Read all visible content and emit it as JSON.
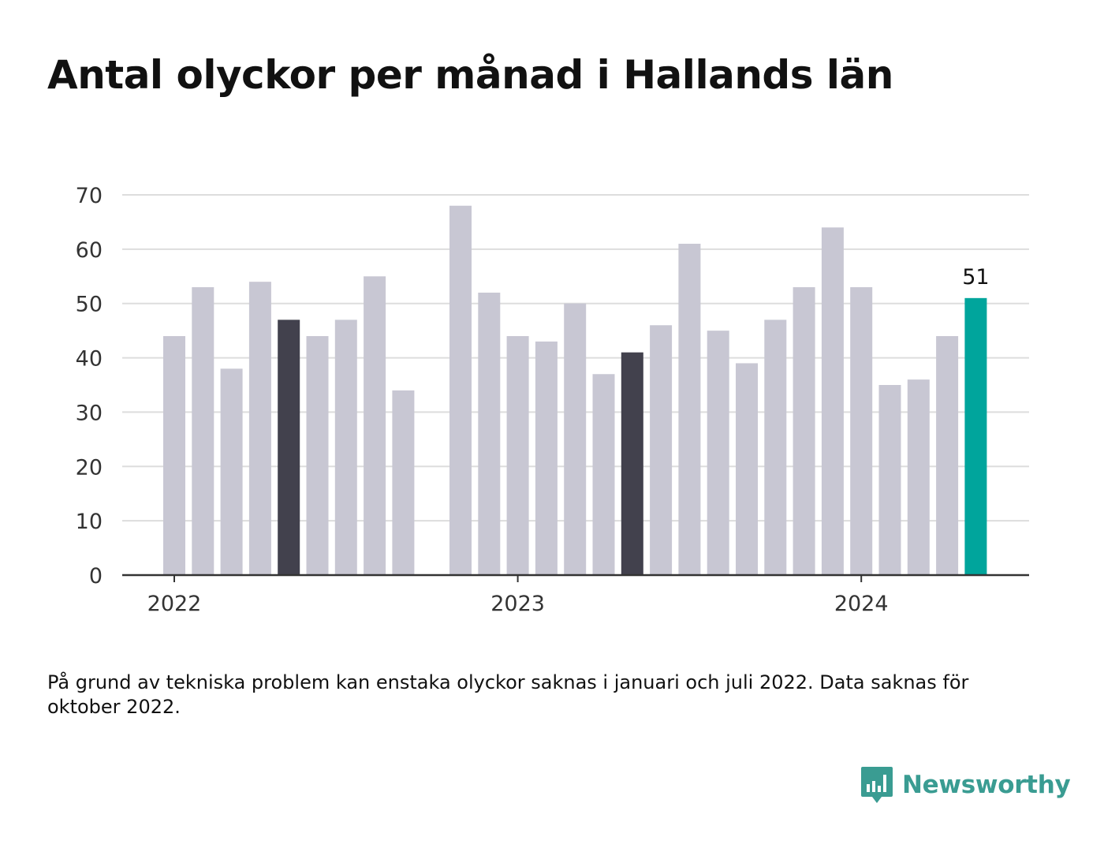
{
  "title": "Antal olyckor per månad i Hallands län",
  "note": "På grund av tekniska problem kan enstaka olyckor saknas i januari och juli 2022. Data saknas för oktober 2022.",
  "brand": {
    "name": "Newsworthy",
    "icon": "newsworthy-logo-icon"
  },
  "colors": {
    "default_bar": "#c8c7d3",
    "highlight_bar": "#42414d",
    "latest_bar": "#00a59c",
    "grid": "#dddddd",
    "axis": "#333333"
  },
  "chart_data": {
    "type": "bar",
    "title": "Antal olyckor per månad i Hallands län",
    "xlabel": "",
    "ylabel": "",
    "ylim": [
      0,
      70
    ],
    "yticks": [
      0,
      10,
      20,
      30,
      40,
      50,
      60,
      70
    ],
    "x_tick_labels": [
      {
        "label": "2022",
        "month": "2022-01"
      },
      {
        "label": "2023",
        "month": "2023-01"
      },
      {
        "label": "2024",
        "month": "2024-01"
      }
    ],
    "grid": true,
    "legend": "none",
    "data": [
      {
        "month": "2022-01",
        "value": 44,
        "style": "default"
      },
      {
        "month": "2022-02",
        "value": 53,
        "style": "default"
      },
      {
        "month": "2022-03",
        "value": 38,
        "style": "default"
      },
      {
        "month": "2022-04",
        "value": 54,
        "style": "default"
      },
      {
        "month": "2022-05",
        "value": 47,
        "style": "highlight"
      },
      {
        "month": "2022-06",
        "value": 44,
        "style": "default"
      },
      {
        "month": "2022-07",
        "value": 47,
        "style": "default"
      },
      {
        "month": "2022-08",
        "value": 55,
        "style": "default"
      },
      {
        "month": "2022-09",
        "value": 34,
        "style": "default"
      },
      {
        "month": "2022-10",
        "value": null,
        "style": "missing"
      },
      {
        "month": "2022-11",
        "value": 68,
        "style": "default"
      },
      {
        "month": "2022-12",
        "value": 52,
        "style": "default"
      },
      {
        "month": "2023-01",
        "value": 44,
        "style": "default"
      },
      {
        "month": "2023-02",
        "value": 43,
        "style": "default"
      },
      {
        "month": "2023-03",
        "value": 50,
        "style": "default"
      },
      {
        "month": "2023-04",
        "value": 37,
        "style": "default"
      },
      {
        "month": "2023-05",
        "value": 41,
        "style": "highlight"
      },
      {
        "month": "2023-06",
        "value": 46,
        "style": "default"
      },
      {
        "month": "2023-07",
        "value": 61,
        "style": "default"
      },
      {
        "month": "2023-08",
        "value": 45,
        "style": "default"
      },
      {
        "month": "2023-09",
        "value": 39,
        "style": "default"
      },
      {
        "month": "2023-10",
        "value": 47,
        "style": "default"
      },
      {
        "month": "2023-11",
        "value": 53,
        "style": "default"
      },
      {
        "month": "2023-12",
        "value": 64,
        "style": "default"
      },
      {
        "month": "2024-01",
        "value": 53,
        "style": "default"
      },
      {
        "month": "2024-02",
        "value": 35,
        "style": "default"
      },
      {
        "month": "2024-03",
        "value": 36,
        "style": "default"
      },
      {
        "month": "2024-04",
        "value": 44,
        "style": "default"
      },
      {
        "month": "2024-05",
        "value": 51,
        "style": "latest",
        "data_label": "51"
      }
    ]
  }
}
